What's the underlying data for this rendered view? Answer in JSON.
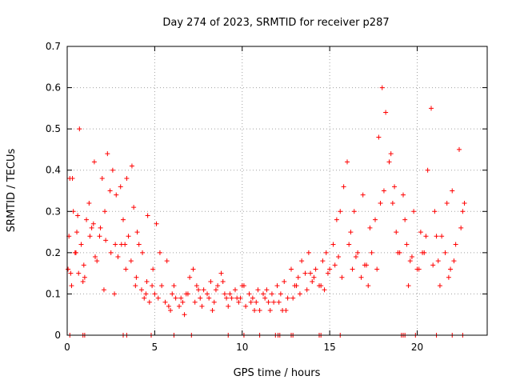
{
  "chart_data": {
    "type": "scatter",
    "title": "Day 274 of 2023, SRMTID for receiver p287",
    "xlabel": "GPS time / hours",
    "ylabel": "SRMTID / TECUs",
    "xlim": [
      0,
      24
    ],
    "ylim": [
      0,
      0.7
    ],
    "xticks": [
      0,
      5,
      10,
      15,
      20
    ],
    "yticks": [
      0,
      0.1,
      0.2,
      0.3,
      0.4,
      0.5,
      0.6,
      0.7
    ],
    "grid": true,
    "marker": "+",
    "color": "#ff0000",
    "series": [
      {
        "name": "SRMTID",
        "x": [
          0.05,
          0.15,
          0.25,
          0.35,
          0.45,
          0.55,
          0.65,
          0.8,
          0.95,
          1.1,
          1.25,
          1.4,
          1.55,
          1.7,
          1.85,
          2.0,
          2.15,
          2.3,
          2.45,
          2.6,
          2.75,
          2.9,
          3.05,
          3.2,
          3.35,
          3.5,
          3.65,
          3.8,
          3.95,
          4.1,
          4.25,
          4.4,
          4.55,
          4.7,
          4.85,
          5.0,
          5.2,
          5.4,
          5.6,
          5.8,
          6.0,
          6.2,
          6.4,
          6.6,
          6.8,
          7.0,
          7.2,
          7.4,
          7.6,
          7.8,
          8.0,
          8.2,
          8.4,
          8.6,
          8.8,
          9.0,
          9.2,
          9.4,
          9.6,
          9.8,
          10.0,
          10.2,
          10.4,
          10.6,
          10.8,
          11.0,
          11.2,
          11.4,
          11.6,
          11.8,
          12.0,
          12.2,
          12.4,
          12.6,
          12.8,
          13.0,
          13.2,
          13.4,
          13.6,
          13.8,
          14.0,
          14.2,
          14.4,
          14.6,
          14.8,
          15.0,
          15.2,
          15.4,
          15.6,
          15.8,
          16.0,
          16.2,
          16.4,
          16.6,
          16.8,
          17.0,
          17.2,
          17.4,
          17.6,
          17.8,
          18.0,
          18.2,
          18.4,
          18.6,
          18.8,
          19.0,
          19.2,
          19.4,
          19.6,
          19.8,
          20.0,
          20.2,
          20.4,
          20.6,
          20.8,
          21.0,
          21.2,
          21.4,
          21.6,
          21.8,
          22.0,
          22.2,
          22.4,
          22.6,
          0.1,
          0.3,
          0.5,
          0.7,
          1.0,
          1.3,
          1.6,
          1.9,
          2.2,
          2.5,
          2.8,
          3.1,
          3.4,
          3.7,
          4.0,
          4.3,
          4.6,
          4.9,
          5.3,
          5.7,
          6.1,
          6.5,
          6.9,
          7.3,
          7.7,
          8.1,
          8.5,
          8.9,
          9.3,
          9.7,
          10.1,
          10.5,
          10.9,
          11.3,
          11.7,
          12.1,
          12.5,
          12.9,
          13.3,
          13.7,
          14.1,
          14.5,
          14.9,
          15.3,
          15.7,
          16.1,
          16.5,
          16.9,
          17.3,
          17.7,
          18.1,
          18.5,
          18.9,
          19.3,
          19.7,
          20.1,
          20.5,
          20.9,
          21.3,
          21.7,
          22.1,
          22.5,
          0.2,
          0.6,
          0.9,
          1.5,
          2.1,
          2.7,
          3.3,
          3.9,
          4.5,
          5.1,
          5.9,
          6.7,
          7.5,
          8.3,
          9.1,
          9.9,
          10.7,
          11.5,
          12.3,
          13.1,
          13.9,
          14.7,
          15.5,
          16.3,
          17.1,
          17.9,
          18.7,
          19.5,
          20.3,
          21.1,
          21.9,
          22.7
        ],
        "y": [
          0.16,
          0.38,
          0.12,
          0.3,
          0.2,
          0.25,
          0.15,
          0.22,
          0.17,
          0.28,
          0.32,
          0.26,
          0.42,
          0.18,
          0.24,
          0.38,
          0.3,
          0.44,
          0.35,
          0.4,
          0.22,
          0.19,
          0.36,
          0.28,
          0.16,
          0.24,
          0.18,
          0.31,
          0.14,
          0.22,
          0.11,
          0.09,
          0.13,
          0.08,
          0.12,
          0.1,
          0.09,
          0.12,
          0.08,
          0.07,
          0.1,
          0.09,
          0.07,
          0.08,
          0.1,
          0.14,
          0.16,
          0.12,
          0.09,
          0.11,
          0.1,
          0.13,
          0.08,
          0.12,
          0.15,
          0.1,
          0.07,
          0.09,
          0.11,
          0.08,
          0.12,
          0.07,
          0.1,
          0.09,
          0.08,
          0.06,
          0.1,
          0.11,
          0.06,
          0.08,
          0.12,
          0.1,
          0.13,
          0.09,
          0.16,
          0.12,
          0.14,
          0.18,
          0.15,
          0.2,
          0.13,
          0.16,
          0.12,
          0.18,
          0.2,
          0.16,
          0.22,
          0.28,
          0.3,
          0.36,
          0.42,
          0.25,
          0.3,
          0.2,
          0.14,
          0.17,
          0.12,
          0.2,
          0.28,
          0.48,
          0.6,
          0.54,
          0.42,
          0.32,
          0.25,
          0.2,
          0.34,
          0.22,
          0.18,
          0.3,
          0.16,
          0.25,
          0.2,
          0.4,
          0.55,
          0.3,
          0.18,
          0.24,
          0.2,
          0.14,
          0.35,
          0.22,
          0.45,
          0.3,
          0.24,
          0.38,
          0.2,
          0.5,
          0.14,
          0.24,
          0.19,
          0.26,
          0.23,
          0.2,
          0.34,
          0.22,
          0.38,
          0.41,
          0.25,
          0.2,
          0.29,
          0.16,
          0.2,
          0.18,
          0.12,
          0.09,
          0.1,
          0.08,
          0.07,
          0.09,
          0.11,
          0.13,
          0.1,
          0.09,
          0.12,
          0.08,
          0.11,
          0.09,
          0.1,
          0.08,
          0.06,
          0.09,
          0.1,
          0.11,
          0.14,
          0.12,
          0.15,
          0.17,
          0.14,
          0.22,
          0.19,
          0.34,
          0.26,
          0.16,
          0.35,
          0.44,
          0.2,
          0.28,
          0.19,
          0.16,
          0.24,
          0.17,
          0.12,
          0.32,
          0.18,
          0.26,
          0.15,
          0.29,
          0.13,
          0.27,
          0.11,
          0.1,
          0.22,
          0.12,
          0.1,
          0.27,
          0.06,
          0.05,
          0.11,
          0.06,
          0.09,
          0.09,
          0.06,
          0.08,
          0.06,
          0.12,
          0.15,
          0.11,
          0.19,
          0.16,
          0.17,
          0.32,
          0.36,
          0.12,
          0.2,
          0.24,
          0.16,
          0.32
        ]
      }
    ],
    "zero_line_x": [
      0.15,
      0.9,
      1.0,
      3.2,
      3.4,
      4.8,
      6.1,
      7.1,
      9.2,
      10.1,
      11.0,
      11.9,
      12.05,
      12.15,
      12.8,
      12.9,
      14.4,
      14.5,
      15.6,
      19.1,
      19.2,
      19.3,
      19.9,
      21.1,
      22.0,
      22.6
    ]
  }
}
